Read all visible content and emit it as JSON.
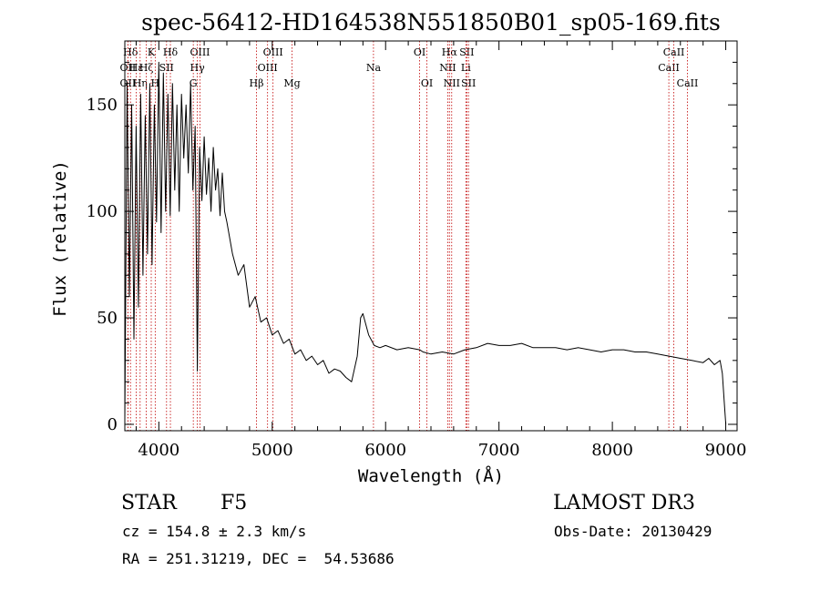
{
  "chart_data": {
    "type": "line",
    "title": "spec-56412-HD164538N551850B01_sp05-169.fits",
    "xlabel": "Wavelength (Å)",
    "ylabel": "Flux (relative)",
    "xlim": [
      3700,
      9100
    ],
    "ylim": [
      -3,
      180
    ],
    "xticks": [
      4000,
      5000,
      6000,
      7000,
      8000,
      9000
    ],
    "yticks": [
      0,
      50,
      100,
      150
    ],
    "grid": false,
    "series": [
      {
        "name": "spectrum",
        "x": [
          3700,
          3720,
          3740,
          3760,
          3780,
          3800,
          3820,
          3840,
          3860,
          3880,
          3900,
          3920,
          3940,
          3960,
          3980,
          4000,
          4020,
          4040,
          4060,
          4080,
          4100,
          4120,
          4140,
          4160,
          4180,
          4200,
          4220,
          4240,
          4260,
          4280,
          4300,
          4320,
          4340,
          4360,
          4380,
          4400,
          4420,
          4440,
          4460,
          4480,
          4500,
          4520,
          4540,
          4560,
          4580,
          4600,
          4650,
          4700,
          4750,
          4800,
          4850,
          4900,
          4950,
          5000,
          5050,
          5100,
          5150,
          5200,
          5250,
          5300,
          5350,
          5400,
          5450,
          5500,
          5550,
          5600,
          5650,
          5700,
          5750,
          5780,
          5800,
          5850,
          5900,
          5950,
          6000,
          6100,
          6200,
          6300,
          6330,
          6400,
          6500,
          6600,
          6700,
          6800,
          6900,
          7000,
          7100,
          7200,
          7300,
          7400,
          7500,
          7600,
          7700,
          7800,
          7900,
          8000,
          8100,
          8200,
          8300,
          8400,
          8500,
          8600,
          8700,
          8800,
          8850,
          8900,
          8950,
          8970,
          8990,
          9000
        ],
        "y": [
          2,
          160,
          60,
          150,
          40,
          140,
          55,
          155,
          70,
          145,
          80,
          160,
          75,
          150,
          95,
          170,
          90,
          165,
          100,
          155,
          98,
          160,
          110,
          150,
          100,
          155,
          125,
          150,
          118,
          160,
          110,
          140,
          25,
          130,
          105,
          135,
          108,
          125,
          100,
          130,
          110,
          120,
          98,
          118,
          100,
          95,
          80,
          70,
          75,
          55,
          60,
          48,
          50,
          42,
          44,
          38,
          40,
          33,
          35,
          30,
          32,
          28,
          30,
          24,
          26,
          25,
          22,
          20,
          32,
          50,
          52,
          42,
          37,
          36,
          37,
          35,
          36,
          35,
          34,
          33,
          34,
          33,
          35,
          36,
          38,
          37,
          37,
          38,
          36,
          36,
          36,
          35,
          36,
          35,
          34,
          35,
          35,
          34,
          34,
          33,
          32,
          31,
          30,
          29,
          31,
          28,
          30,
          24,
          8,
          0
        ]
      }
    ],
    "line_annotations": [
      {
        "label": "Hδ",
        "x": 3750,
        "row": 1
      },
      {
        "label": "OII",
        "x": 3727,
        "row": 2
      },
      {
        "label": "OII",
        "x": 3727,
        "row": 3
      },
      {
        "label": "Hε",
        "x": 3800,
        "row": 2
      },
      {
        "label": "Hη",
        "x": 3835,
        "row": 3
      },
      {
        "label": "Hζ",
        "x": 3889,
        "row": 2
      },
      {
        "label": "K",
        "x": 3933,
        "row": 1
      },
      {
        "label": "H",
        "x": 3968,
        "row": 3
      },
      {
        "label": "SII",
        "x": 4068,
        "row": 2
      },
      {
        "label": "Hδ",
        "x": 4102,
        "row": 1
      },
      {
        "label": "OIII",
        "x": 4363,
        "row": 1
      },
      {
        "label": "Hγ",
        "x": 4340,
        "row": 2
      },
      {
        "label": "G",
        "x": 4304,
        "row": 3
      },
      {
        "label": "Hβ",
        "x": 4861,
        "row": 3
      },
      {
        "label": "OIII",
        "x": 4959,
        "row": 2
      },
      {
        "label": "OIII",
        "x": 5007,
        "row": 1
      },
      {
        "label": "Mg",
        "x": 5175,
        "row": 3
      },
      {
        "label": "Na",
        "x": 5893,
        "row": 2
      },
      {
        "label": "OI",
        "x": 6300,
        "row": 1
      },
      {
        "label": "OI",
        "x": 6364,
        "row": 3
      },
      {
        "label": "NII",
        "x": 6548,
        "row": 2
      },
      {
        "label": "Hα",
        "x": 6563,
        "row": 1
      },
      {
        "label": "NII",
        "x": 6583,
        "row": 3
      },
      {
        "label": "SII",
        "x": 6716,
        "row": 1
      },
      {
        "label": "Li",
        "x": 6708,
        "row": 2
      },
      {
        "label": "SII",
        "x": 6731,
        "row": 3
      },
      {
        "label": "CaII",
        "x": 8498,
        "row": 2
      },
      {
        "label": "CaII",
        "x": 8542,
        "row": 1
      },
      {
        "label": "CaII",
        "x": 8662,
        "row": 3
      }
    ]
  },
  "info": {
    "object_class": "STAR",
    "subclass": "F5",
    "survey": "LAMOST DR3",
    "cz": "cz = 154.8 ± 2.3 km/s",
    "obs_date": "Obs-Date: 20130429",
    "coords": "RA = 251.31219, DEC =  54.53686"
  },
  "colors": {
    "spectrum": "#000000",
    "line_marker": "#c00000",
    "axis": "#000000"
  }
}
